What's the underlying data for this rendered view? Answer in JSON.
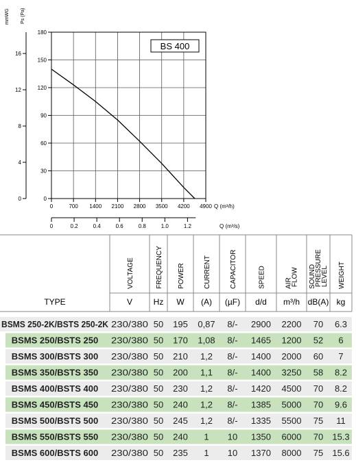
{
  "chart_data": {
    "type": "line",
    "x": [
      0,
      700,
      1400,
      2100,
      2800,
      3500,
      4200,
      4550
    ],
    "series": [
      {
        "name": "BS 400",
        "color": "#000000",
        "values": [
          140,
          123,
          105,
          85,
          62,
          38,
          12,
          0
        ]
      }
    ],
    "xlim": [
      0,
      4900
    ],
    "xticks": [
      0,
      700,
      1400,
      2100,
      2800,
      3500,
      4200,
      4900
    ],
    "ylim": [
      0,
      180
    ],
    "yticks": [
      0,
      30,
      60,
      90,
      120,
      150,
      180
    ],
    "y2lim": [
      0,
      18.35
    ],
    "y2ticks": [
      0,
      4,
      8,
      12,
      16
    ],
    "x2lim": [
      0,
      1.361
    ],
    "x2ticks": [
      0,
      0.2,
      0.4,
      0.6,
      0.8,
      1.0,
      1.2
    ],
    "x2tick_labels": [
      "0",
      "0.2",
      "0.4",
      "0.6",
      "0.8",
      "1.0",
      "1.2"
    ],
    "ylabel": "Ps (Pa)",
    "y2label": "mmWG",
    "xlabel": "Q (m³/h)",
    "x2label": "Q (m³/s)",
    "grid": true
  },
  "table": {
    "headers": [
      "TYPE",
      "VOLTAGE",
      "FREQUENCY",
      "POWER",
      "CURRENT",
      "CAPACITOR",
      "SPEED",
      "AIR FLOW",
      "SOUND PRESSURE LEVEL",
      "WEIGHT"
    ],
    "units": [
      "V",
      "Hz",
      "W",
      "(A)",
      "(µF)",
      "d/d",
      "m³/h",
      "dB(A)",
      "kg"
    ],
    "rows": [
      [
        "BSMS 250-2K/BSTS 250-2K",
        "230/380",
        "50",
        "195",
        "0,87",
        "8/-",
        "2900",
        "2200",
        "70",
        "6.3"
      ],
      [
        "BSMS 250/BSTS 250",
        "230/380",
        "50",
        "170",
        "1,08",
        "8/-",
        "1465",
        "1200",
        "52",
        "6"
      ],
      [
        "BSMS 300/BSTS 300",
        "230/380",
        "50",
        "210",
        "1,2",
        "8/-",
        "1400",
        "2000",
        "60",
        "7"
      ],
      [
        "BSMS 350/BSTS 350",
        "230/380",
        "50",
        "200",
        "1,1",
        "8/-",
        "1400",
        "3250",
        "58",
        "8.2"
      ],
      [
        "BSMS 400/BSTS 400",
        "230/380",
        "50",
        "230",
        "1,2",
        "8/-",
        "1420",
        "4500",
        "70",
        "8.2"
      ],
      [
        "BSMS 450/BSTS 450",
        "230/380",
        "50",
        "240",
        "1,2",
        "8/-",
        "1385",
        "5000",
        "70",
        "9.6"
      ],
      [
        "BSMS 500/BSTS 500",
        "230/380",
        "50",
        "245",
        "1,2",
        "8/-",
        "1335",
        "5500",
        "75",
        "11"
      ],
      [
        "BSMS 550/BSTS 550",
        "230/380",
        "50",
        "240",
        "1",
        "10",
        "1350",
        "6000",
        "70",
        "15.3"
      ],
      [
        "BSMS 600/BSTS 600",
        "230/380",
        "50",
        "235",
        "1",
        "10",
        "1370",
        "8000",
        "75",
        "15.6"
      ]
    ]
  }
}
